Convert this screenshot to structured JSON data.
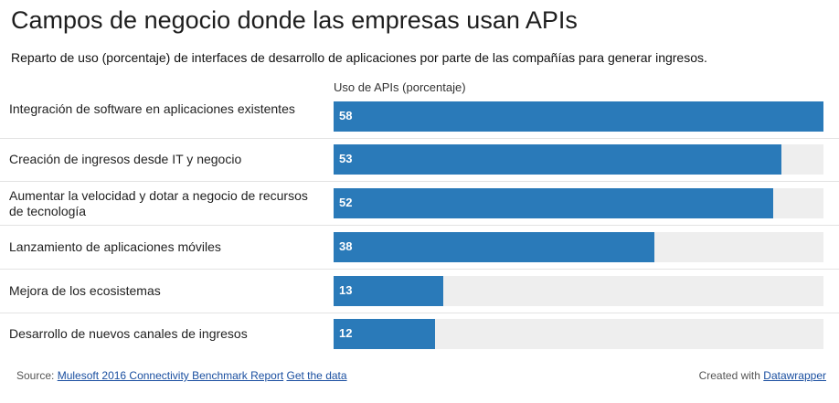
{
  "chart_data": {
    "type": "bar",
    "orientation": "horizontal",
    "title": "Campos de negocio donde las empresas usan APIs",
    "subtitle": "Reparto de uso (porcentaje) de interfaces de desarrollo de aplicaciones por parte de las compañías para generar ingresos.",
    "column_header": "Uso de APIs (porcentaje)",
    "categories": [
      "Integración de software en aplicaciones existentes",
      "Creación de ingresos desde IT y negocio",
      "Aumentar la velocidad y dotar a negocio de recursos de tecnología",
      "Lanzamiento de aplicaciones móviles",
      "Mejora de los ecosistemas",
      "Desarrollo de nuevos canales de ingresos"
    ],
    "values": [
      58,
      53,
      52,
      38,
      13,
      12
    ],
    "xlim": [
      0,
      58
    ],
    "bar_color": "#2a7ab9",
    "track_color": "#eeeeee"
  },
  "footer": {
    "source_prefix": "Source:",
    "source_link": "Mulesoft 2016 Connectivity Benchmark Report",
    "data_link": "Get the data",
    "created_prefix": "Created with",
    "created_link": "Datawrapper"
  }
}
